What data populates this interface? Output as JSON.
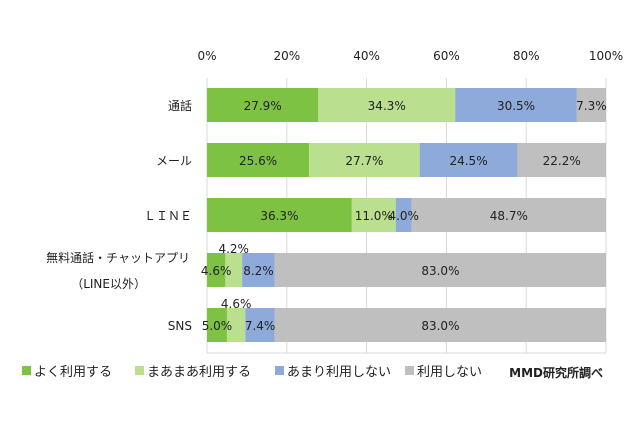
{
  "chart_data": {
    "type": "bar",
    "stacked": true,
    "orientation": "horizontal",
    "categories": [
      "通話",
      "メール",
      "ＬＩＮＥ",
      "無料通話・チャットアプリ",
      "SNS"
    ],
    "category_sublabels": [
      "",
      "",
      "",
      "（LINE以外）",
      ""
    ],
    "series": [
      {
        "name": "よく利用する",
        "color": "#7dc242",
        "values": [
          27.9,
          25.6,
          36.3,
          4.6,
          5.0
        ]
      },
      {
        "name": "まあまあ利用する",
        "color": "#b9df8f",
        "values": [
          34.3,
          27.7,
          11.0,
          4.2,
          4.6
        ]
      },
      {
        "name": "あまり利用しない",
        "color": "#8eaadb",
        "values": [
          30.5,
          24.5,
          4.0,
          8.2,
          7.4
        ]
      },
      {
        "name": "利用しない",
        "color": "#bfbfbf",
        "values": [
          7.3,
          22.2,
          48.7,
          83.0,
          83.0
        ]
      }
    ],
    "xlim": [
      0,
      100
    ],
    "xticks": [
      "0%",
      "20%",
      "40%",
      "60%",
      "80%",
      "100%"
    ],
    "grid": true,
    "legend": "bottom",
    "source": "MMD研究所調べ"
  }
}
